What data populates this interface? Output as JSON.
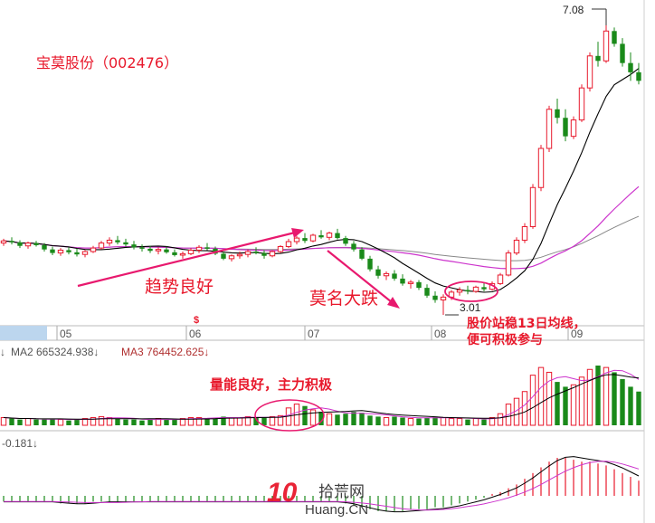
{
  "chart_data": {
    "type": "candlestick",
    "title": "宝莫股份（002476）",
    "price_high_label": "7.08",
    "price_low_label": "3.01",
    "month_labels": [
      "05",
      "06",
      "07",
      "08",
      "09"
    ],
    "event_marker": "$",
    "volume_legend": {
      "ma2": "MA2 665324.938↓",
      "ma3": "MA3 764452.625↓",
      "prefix": "↓"
    },
    "indicator_legend": "-0.181↓",
    "annotations": {
      "trend": "趋势良好",
      "drop": "莫名大跌",
      "stabilize": "股价站稳13日均线，\n便可积极参与",
      "volume": "量能良好，主力积极"
    },
    "watermark": {
      "number": "10",
      "site_cn": "拾荒网",
      "site_en": "Huang.CN"
    },
    "colors": {
      "up": "#e8192c",
      "down": "#1a8a1a",
      "ma13": "#000000",
      "ma_pink": "#cc33cc",
      "ma_gray": "#888888",
      "annotation": "#e8192c"
    },
    "candles": [
      [
        4.02,
        4.08,
        3.98,
        4.05
      ],
      [
        4.05,
        4.1,
        4.0,
        4.03
      ],
      [
        4.03,
        4.06,
        3.95,
        3.98
      ],
      [
        3.98,
        4.04,
        3.94,
        4.02
      ],
      [
        4.02,
        4.05,
        3.97,
        3.99
      ],
      [
        3.99,
        4.02,
        3.9,
        3.93
      ],
      [
        3.93,
        3.97,
        3.85,
        3.88
      ],
      [
        3.88,
        3.95,
        3.84,
        3.92
      ],
      [
        3.92,
        3.96,
        3.86,
        3.89
      ],
      [
        3.89,
        3.94,
        3.83,
        3.86
      ],
      [
        3.86,
        3.92,
        3.82,
        3.9
      ],
      [
        3.9,
        3.98,
        3.88,
        3.95
      ],
      [
        3.95,
        4.05,
        3.93,
        4.02
      ],
      [
        4.02,
        4.1,
        3.98,
        4.06
      ],
      [
        4.06,
        4.12,
        4.0,
        4.03
      ],
      [
        4.03,
        4.08,
        3.97,
        4.0
      ],
      [
        4.0,
        4.05,
        3.93,
        3.96
      ],
      [
        3.96,
        4.0,
        3.9,
        3.94
      ],
      [
        3.94,
        3.98,
        3.88,
        3.91
      ],
      [
        3.91,
        3.96,
        3.86,
        3.93
      ],
      [
        3.93,
        3.97,
        3.87,
        3.89
      ],
      [
        3.89,
        3.93,
        3.83,
        3.85
      ],
      [
        3.85,
        3.9,
        3.8,
        3.87
      ],
      [
        3.87,
        3.95,
        3.85,
        3.92
      ],
      [
        3.92,
        3.99,
        3.88,
        3.96
      ],
      [
        3.96,
        4.02,
        3.92,
        3.94
      ],
      [
        3.94,
        3.97,
        3.85,
        3.87
      ],
      [
        3.87,
        3.9,
        3.78,
        3.8
      ],
      [
        3.8,
        3.86,
        3.76,
        3.84
      ],
      [
        3.84,
        3.9,
        3.8,
        3.86
      ],
      [
        3.86,
        3.93,
        3.82,
        3.9
      ],
      [
        3.9,
        3.96,
        3.86,
        3.88
      ],
      [
        3.88,
        3.92,
        3.8,
        3.84
      ],
      [
        3.84,
        3.92,
        3.82,
        3.9
      ],
      [
        3.9,
        3.99,
        3.88,
        3.97
      ],
      [
        3.97,
        4.08,
        3.95,
        4.04
      ],
      [
        4.04,
        4.12,
        4.0,
        4.09
      ],
      [
        4.09,
        4.16,
        4.02,
        4.05
      ],
      [
        4.05,
        4.15,
        4.03,
        4.13
      ],
      [
        4.13,
        4.2,
        4.08,
        4.1
      ],
      [
        4.1,
        4.18,
        4.06,
        4.16
      ],
      [
        4.16,
        4.22,
        4.07,
        4.09
      ],
      [
        4.09,
        4.12,
        3.98,
        4.01
      ],
      [
        4.01,
        4.05,
        3.9,
        3.93
      ],
      [
        3.93,
        3.96,
        3.78,
        3.8
      ],
      [
        3.8,
        3.84,
        3.62,
        3.65
      ],
      [
        3.65,
        3.7,
        3.52,
        3.56
      ],
      [
        3.56,
        3.62,
        3.5,
        3.59
      ],
      [
        3.59,
        3.64,
        3.49,
        3.52
      ],
      [
        3.52,
        3.58,
        3.42,
        3.45
      ],
      [
        3.45,
        3.5,
        3.38,
        3.47
      ],
      [
        3.47,
        3.5,
        3.36,
        3.39
      ],
      [
        3.39,
        3.44,
        3.25,
        3.28
      ],
      [
        3.28,
        3.34,
        3.18,
        3.22
      ],
      [
        3.22,
        3.3,
        3.01,
        3.26
      ],
      [
        3.26,
        3.36,
        3.22,
        3.33
      ],
      [
        3.33,
        3.4,
        3.28,
        3.36
      ],
      [
        3.36,
        3.42,
        3.3,
        3.34
      ],
      [
        3.34,
        3.42,
        3.32,
        3.4
      ],
      [
        3.4,
        3.46,
        3.34,
        3.37
      ],
      [
        3.37,
        3.48,
        3.35,
        3.45
      ],
      [
        3.45,
        3.6,
        3.43,
        3.57
      ],
      [
        3.57,
        3.92,
        3.55,
        3.88
      ],
      [
        3.88,
        4.1,
        3.85,
        4.06
      ],
      [
        4.06,
        4.3,
        4.02,
        4.25
      ],
      [
        4.25,
        4.85,
        4.22,
        4.8
      ],
      [
        4.8,
        5.4,
        4.75,
        5.35
      ],
      [
        5.35,
        5.95,
        5.3,
        5.9
      ],
      [
        5.9,
        6.05,
        5.7,
        5.78
      ],
      [
        5.78,
        5.9,
        5.45,
        5.52
      ],
      [
        5.52,
        5.8,
        5.48,
        5.75
      ],
      [
        5.75,
        6.25,
        5.72,
        6.2
      ],
      [
        6.2,
        6.7,
        6.15,
        6.65
      ],
      [
        6.65,
        6.85,
        6.5,
        6.58
      ],
      [
        6.58,
        7.08,
        6.55,
        7.0
      ],
      [
        7.0,
        7.05,
        6.78,
        6.82
      ],
      [
        6.82,
        6.9,
        6.5,
        6.55
      ],
      [
        6.55,
        6.7,
        6.3,
        6.42
      ],
      [
        6.42,
        6.55,
        6.25,
        6.3
      ]
    ],
    "volume_up": [
      1,
      0,
      0,
      1,
      0,
      0,
      0,
      1,
      0,
      0,
      1,
      1,
      1,
      1,
      0,
      0,
      0,
      0,
      0,
      1,
      0,
      0,
      1,
      1,
      1,
      0,
      0,
      0,
      1,
      1,
      1,
      0,
      0,
      1,
      1,
      1,
      1,
      0,
      1,
      0,
      1,
      0,
      0,
      0,
      0,
      0,
      0,
      1,
      0,
      0,
      1,
      0,
      0,
      0,
      1,
      1,
      1,
      0,
      1,
      0,
      1,
      1,
      1,
      1,
      1,
      1,
      1,
      1,
      0,
      0,
      1,
      1,
      1,
      0,
      1,
      0,
      0,
      0,
      0
    ],
    "volume": [
      8,
      7,
      6,
      7,
      6,
      6,
      7,
      6,
      5,
      6,
      7,
      8,
      9,
      8,
      7,
      6,
      6,
      5,
      6,
      7,
      6,
      6,
      7,
      8,
      8,
      7,
      8,
      9,
      8,
      8,
      9,
      8,
      8,
      9,
      10,
      18,
      22,
      20,
      16,
      14,
      12,
      11,
      12,
      14,
      13,
      10,
      9,
      8,
      9,
      8,
      7,
      7,
      8,
      9,
      8,
      7,
      7,
      6,
      7,
      6,
      8,
      12,
      22,
      28,
      35,
      52,
      60,
      55,
      45,
      40,
      42,
      50,
      58,
      62,
      60,
      55,
      48,
      40,
      35
    ],
    "macd": [
      -3,
      -3,
      -3,
      -3,
      -3,
      -3,
      -3,
      -4,
      -4,
      -4,
      -4,
      -3,
      -3,
      -3,
      -3,
      -3,
      -3,
      -3,
      -3,
      -3,
      -3,
      -3,
      -3,
      -3,
      -3,
      -3,
      -3,
      -3,
      -3,
      -3,
      -3,
      -3,
      -3,
      -3,
      -3,
      -3,
      -3,
      -3,
      -3,
      -3,
      -3,
      -3,
      -4,
      -5,
      -6,
      -7,
      -8,
      -8,
      -8,
      -8,
      -7,
      -7,
      -7,
      -6,
      -6,
      -5,
      -4,
      -3,
      -2,
      -1,
      1,
      2,
      4,
      6,
      9,
      12,
      15,
      18,
      20,
      20,
      19,
      18,
      18,
      17,
      16,
      14,
      12,
      10,
      8
    ]
  }
}
